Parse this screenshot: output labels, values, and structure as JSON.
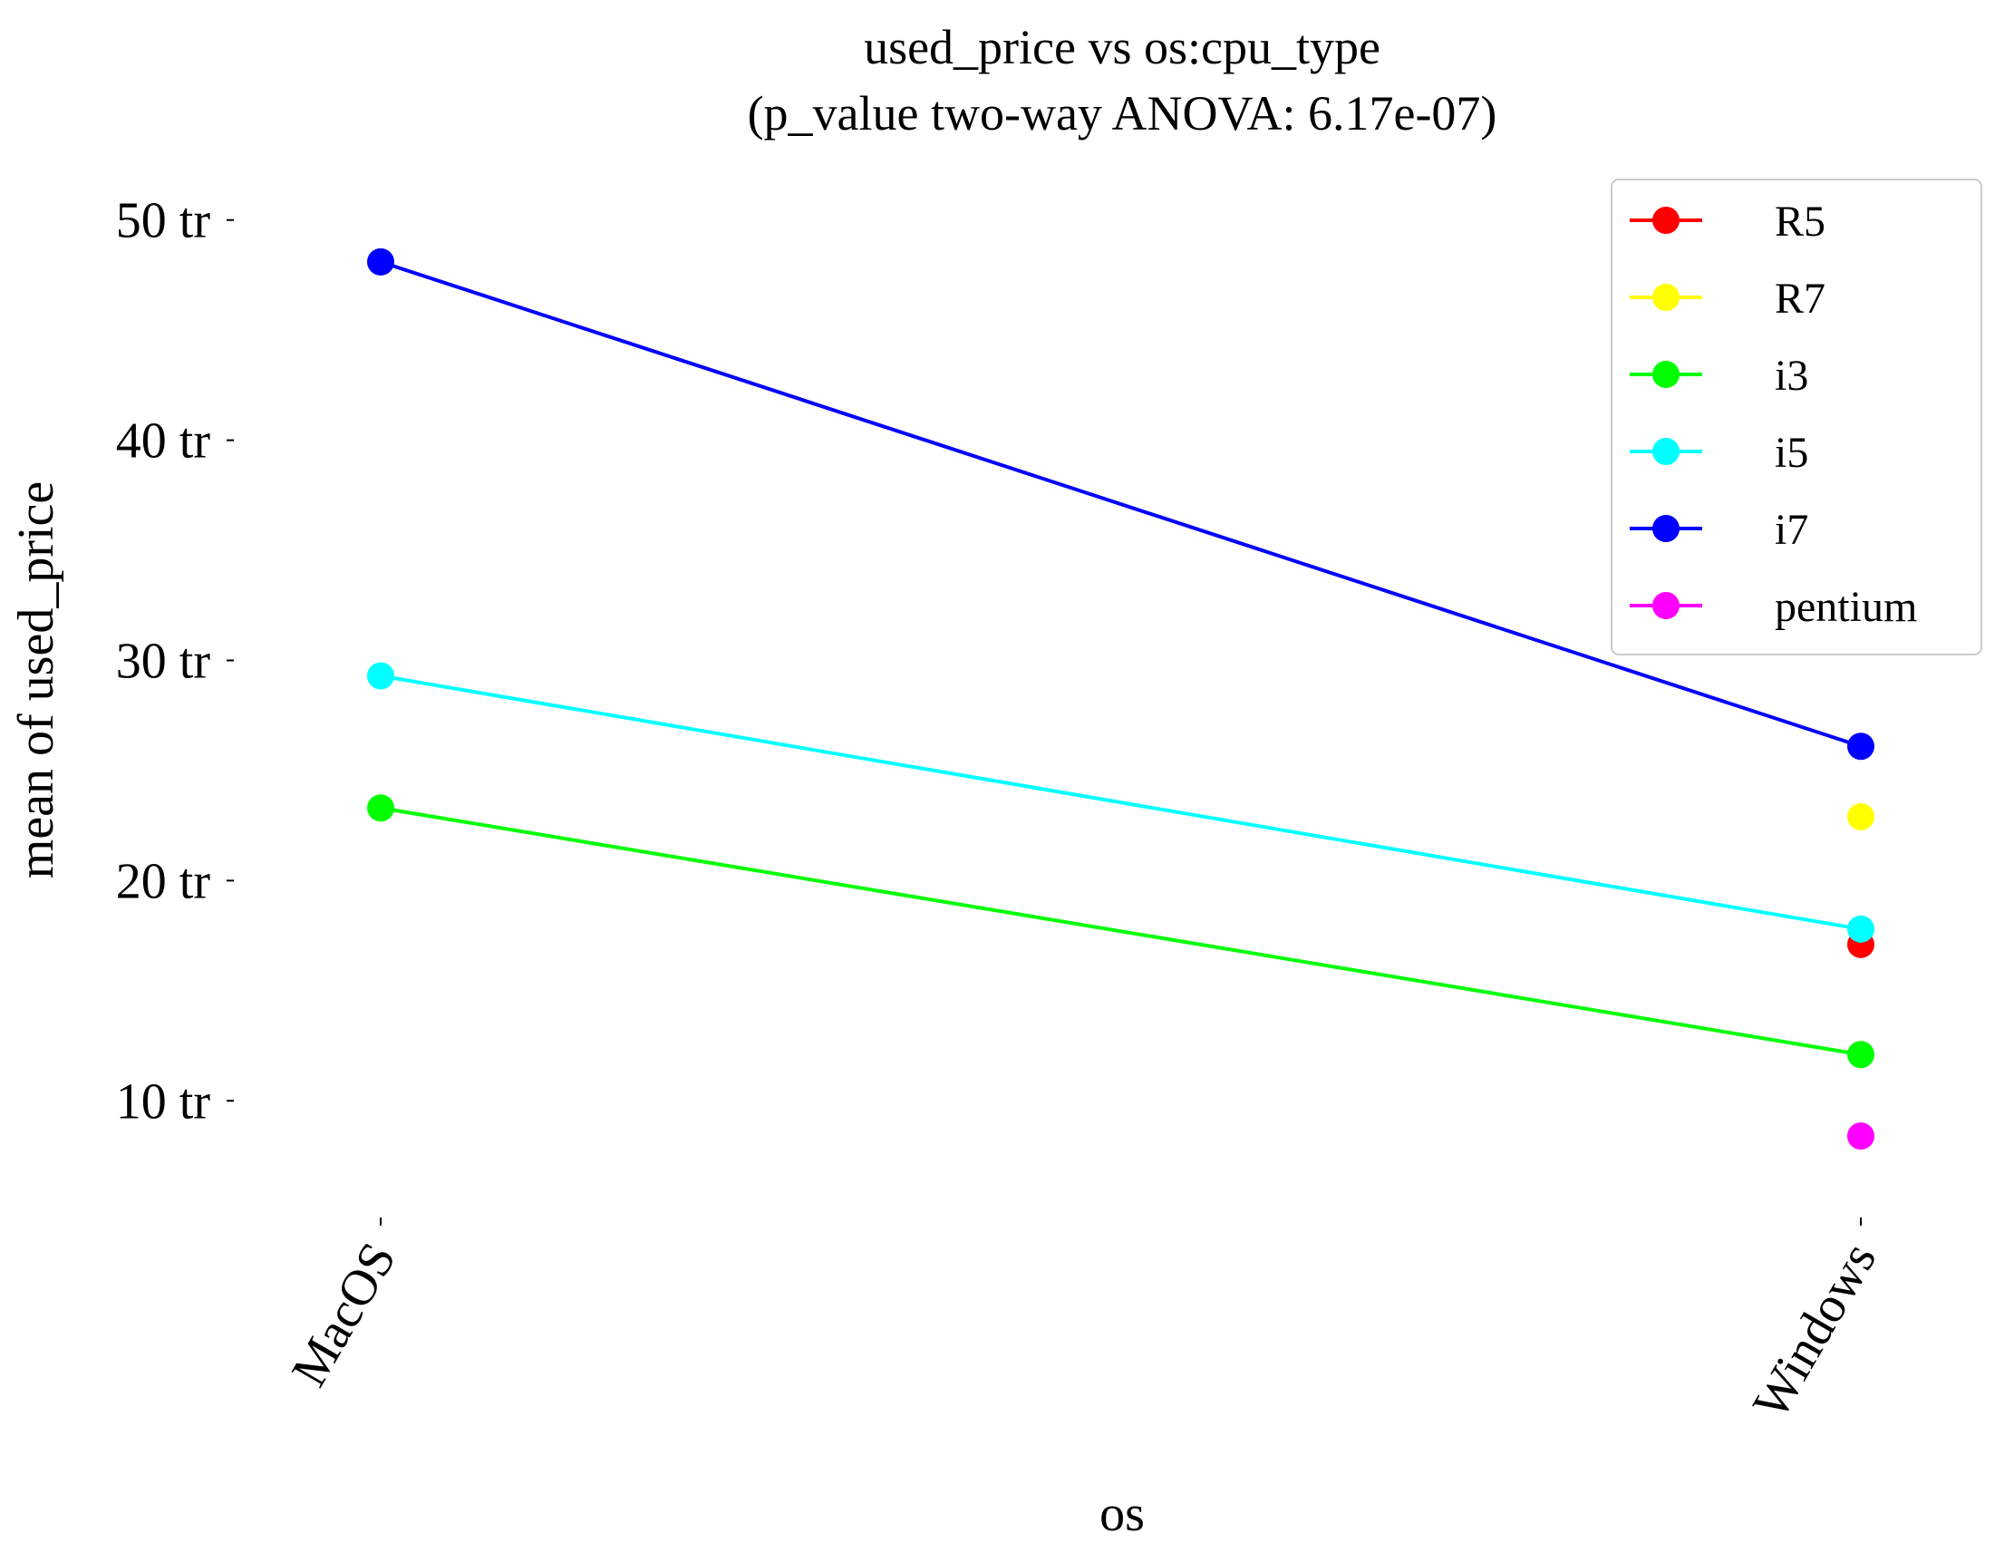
{
  "chart_data": {
    "type": "line",
    "title": "used_price vs os:cpu_type",
    "subtitle": "(p_value two-way ANOVA: 6.17e-07)",
    "xlabel": "os",
    "ylabel": "mean of used_price",
    "categories": [
      "MacOS",
      "Windows"
    ],
    "y_ticks": [
      {
        "value": 10,
        "label": "10 tr"
      },
      {
        "value": 20,
        "label": "20 tr"
      },
      {
        "value": 30,
        "label": "30 tr"
      },
      {
        "value": 40,
        "label": "40 tr"
      },
      {
        "value": 50,
        "label": "50 tr"
      }
    ],
    "ylim": [
      4.7,
      52.5
    ],
    "grid": false,
    "legend_position": "top-right",
    "series": [
      {
        "name": "R5",
        "color": "#ff0000",
        "values": [
          null,
          17.1
        ]
      },
      {
        "name": "R7",
        "color": "#ffff00",
        "values": [
          null,
          22.9
        ]
      },
      {
        "name": "i3",
        "color": "#00ff00",
        "values": [
          23.3,
          12.1
        ]
      },
      {
        "name": "i5",
        "color": "#00ffff",
        "values": [
          29.3,
          17.8
        ]
      },
      {
        "name": "i7",
        "color": "#0000ff",
        "values": [
          48.1,
          26.1
        ]
      },
      {
        "name": "pentium",
        "color": "#ff00ff",
        "values": [
          null,
          8.4
        ]
      }
    ]
  }
}
